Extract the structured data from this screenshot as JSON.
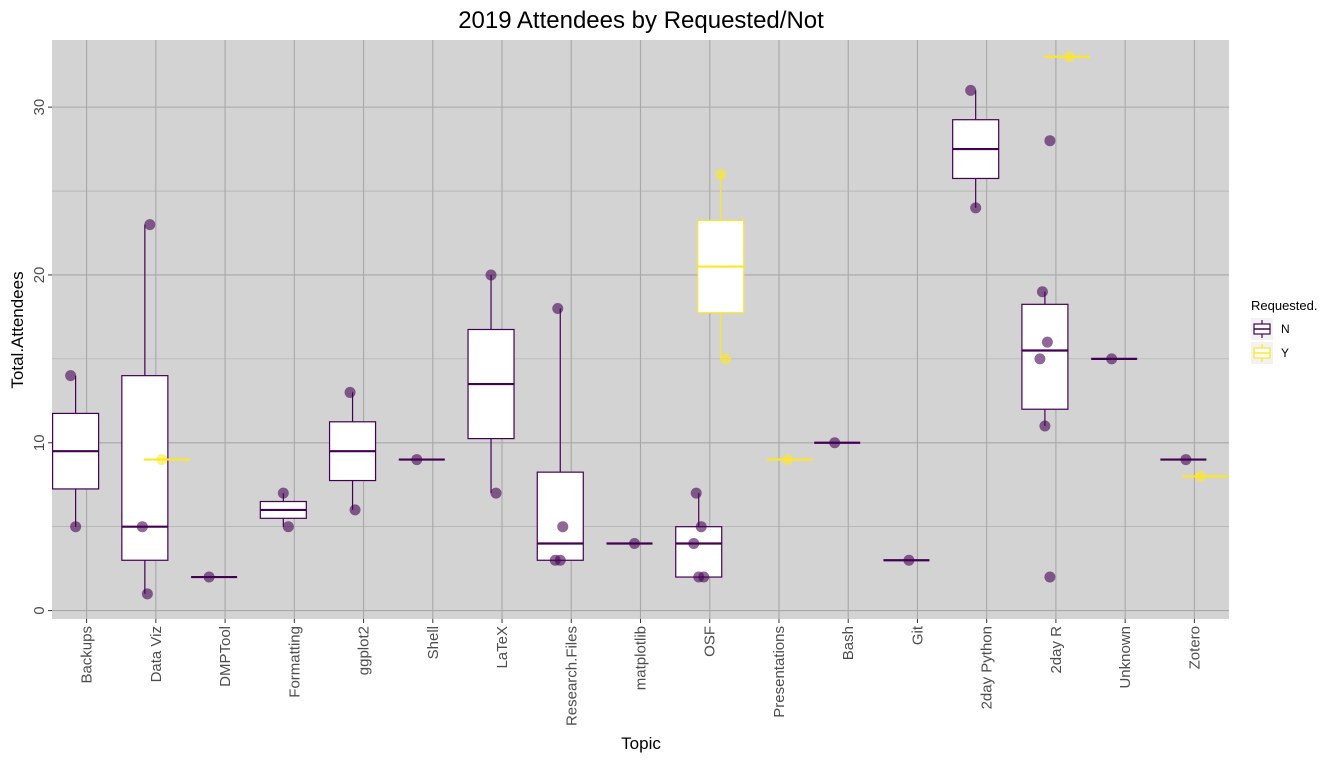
{
  "chart_data": {
    "type": "box",
    "title": "2019 Attendees by Requested/Not",
    "xlabel": "Topic",
    "ylabel": "Total.Attendees",
    "categories": [
      "Backups",
      "Data Viz",
      "DMPTool",
      "Formatting",
      "ggplot2",
      "Shell",
      "LaTeX",
      "Research.Files",
      "matplotlib",
      "OSF",
      "Presentations",
      "Bash",
      "Git",
      "2day Python",
      "2day R",
      "Unknown",
      "Zotero"
    ],
    "y_ticks": [
      "0",
      "10",
      "20",
      "30"
    ],
    "ylim": [
      -0.5,
      34
    ],
    "grid": true,
    "legend": {
      "title": "Requested.",
      "placement": "right",
      "entries": [
        {
          "label": "N",
          "color": "#440154"
        },
        {
          "label": "Y",
          "color": "#FDE725"
        }
      ]
    },
    "series": [
      {
        "name": "N",
        "color": "#440154",
        "boxes": [
          {
            "category": "Backups",
            "min": 5,
            "q1": 7.25,
            "median": 9.5,
            "q3": 11.75,
            "max": 14
          },
          {
            "category": "Data Viz",
            "min": 1,
            "q1": 3,
            "median": 5,
            "q3": 14,
            "max": 23
          },
          {
            "category": "DMPTool",
            "min": 2,
            "q1": 2,
            "median": 2,
            "q3": 2,
            "max": 2
          },
          {
            "category": "Formatting",
            "min": 5,
            "q1": 5.5,
            "median": 6,
            "q3": 6.5,
            "max": 7
          },
          {
            "category": "ggplot2",
            "min": 6,
            "q1": 7.75,
            "median": 9.5,
            "q3": 11.25,
            "max": 13
          },
          {
            "category": "Shell",
            "min": 9,
            "q1": 9,
            "median": 9,
            "q3": 9,
            "max": 9
          },
          {
            "category": "LaTeX",
            "min": 7,
            "q1": 10.25,
            "median": 13.5,
            "q3": 16.75,
            "max": 20
          },
          {
            "category": "Research.Files",
            "min": 3,
            "q1": 3,
            "median": 4,
            "q3": 8.25,
            "max": 18
          },
          {
            "category": "matplotlib",
            "min": 4,
            "q1": 4,
            "median": 4,
            "q3": 4,
            "max": 4
          },
          {
            "category": "OSF",
            "min": 2,
            "q1": 2,
            "median": 4,
            "q3": 5,
            "max": 7
          },
          {
            "category": "Bash",
            "min": 10,
            "q1": 10,
            "median": 10,
            "q3": 10,
            "max": 10
          },
          {
            "category": "Git",
            "min": 3,
            "q1": 3,
            "median": 3,
            "q3": 3,
            "max": 3
          },
          {
            "category": "2day Python",
            "min": 24,
            "q1": 25.75,
            "median": 27.5,
            "q3": 29.25,
            "max": 31
          },
          {
            "category": "2day R",
            "min": 11,
            "q1": 12,
            "median": 15.5,
            "q3": 18.25,
            "max": 19
          },
          {
            "category": "Unknown",
            "min": 15,
            "q1": 15,
            "median": 15,
            "q3": 15,
            "max": 15
          },
          {
            "category": "Zotero",
            "min": 9,
            "q1": 9,
            "median": 9,
            "q3": 9,
            "max": 9
          }
        ],
        "points": [
          {
            "category": "Backups",
            "y": 14
          },
          {
            "category": "Backups",
            "y": 5
          },
          {
            "category": "Data Viz",
            "y": 23
          },
          {
            "category": "Data Viz",
            "y": 5
          },
          {
            "category": "Data Viz",
            "y": 1
          },
          {
            "category": "DMPTool",
            "y": 2
          },
          {
            "category": "Formatting",
            "y": 7
          },
          {
            "category": "Formatting",
            "y": 5
          },
          {
            "category": "ggplot2",
            "y": 13
          },
          {
            "category": "ggplot2",
            "y": 6
          },
          {
            "category": "Shell",
            "y": 9
          },
          {
            "category": "LaTeX",
            "y": 20
          },
          {
            "category": "LaTeX",
            "y": 7
          },
          {
            "category": "Research.Files",
            "y": 18
          },
          {
            "category": "Research.Files",
            "y": 5
          },
          {
            "category": "Research.Files",
            "y": 3
          },
          {
            "category": "Research.Files",
            "y": 3
          },
          {
            "category": "matplotlib",
            "y": 4
          },
          {
            "category": "OSF",
            "y": 7
          },
          {
            "category": "OSF",
            "y": 5
          },
          {
            "category": "OSF",
            "y": 4
          },
          {
            "category": "OSF",
            "y": 2
          },
          {
            "category": "OSF",
            "y": 2
          },
          {
            "category": "Bash",
            "y": 10
          },
          {
            "category": "Git",
            "y": 3
          },
          {
            "category": "2day Python",
            "y": 31
          },
          {
            "category": "2day Python",
            "y": 24
          },
          {
            "category": "2day R",
            "y": 28
          },
          {
            "category": "2day R",
            "y": 19
          },
          {
            "category": "2day R",
            "y": 16
          },
          {
            "category": "2day R",
            "y": 15
          },
          {
            "category": "2day R",
            "y": 11
          },
          {
            "category": "2day R",
            "y": 2
          },
          {
            "category": "Unknown",
            "y": 15
          },
          {
            "category": "Zotero",
            "y": 9
          }
        ]
      },
      {
        "name": "Y",
        "color": "#FDE725",
        "boxes": [
          {
            "category": "Data Viz",
            "min": 9,
            "q1": 9,
            "median": 9,
            "q3": 9,
            "max": 9
          },
          {
            "category": "OSF",
            "min": 15,
            "q1": 17.75,
            "median": 20.5,
            "q3": 23.25,
            "max": 26
          },
          {
            "category": "Presentations",
            "min": 9,
            "q1": 9,
            "median": 9,
            "q3": 9,
            "max": 9
          },
          {
            "category": "2day R",
            "min": 33,
            "q1": 33,
            "median": 33,
            "q3": 33,
            "max": 33
          },
          {
            "category": "Zotero",
            "min": 8,
            "q1": 8,
            "median": 8,
            "q3": 8,
            "max": 8
          }
        ],
        "points": [
          {
            "category": "Data Viz",
            "y": 9
          },
          {
            "category": "OSF",
            "y": 26
          },
          {
            "category": "OSF",
            "y": 15
          },
          {
            "category": "Presentations",
            "y": 9
          },
          {
            "category": "2day R",
            "y": 33
          },
          {
            "category": "Zotero",
            "y": 8
          }
        ]
      }
    ]
  }
}
